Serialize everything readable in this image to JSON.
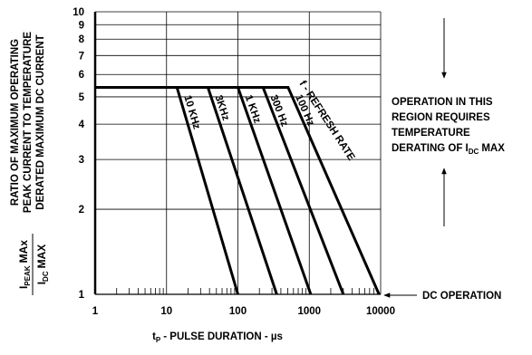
{
  "chart_data": {
    "type": "line",
    "y_label_lines": [
      "RATIO OF MAXIMUM OPERATING",
      "PEAK CURRENT TO TEMPERATURE",
      "DERATED MAXIMUM DC CURRENT"
    ],
    "y_label_fraction": {
      "numerator": [
        "I",
        "PEAK",
        "MAx"
      ],
      "denominator": [
        "I",
        "DC",
        "MAX"
      ]
    },
    "x_label": [
      "t",
      "P",
      "- PULSE DURATION - µs"
    ],
    "xscale": "log",
    "yscale": "log",
    "xlim": [
      1,
      10000
    ],
    "ylim": [
      1,
      10
    ],
    "xticks": [
      1,
      10,
      100,
      1000,
      10000
    ],
    "x_minor_ticks": [
      2,
      3,
      4,
      5,
      6,
      7,
      8,
      9,
      20,
      30,
      40,
      50,
      60,
      70,
      80,
      90,
      200,
      300,
      400,
      500,
      600,
      700,
      800,
      900,
      2000,
      3000,
      4000,
      5000,
      6000,
      7000,
      8000,
      9000
    ],
    "yticks": [
      1,
      2,
      3,
      4,
      5,
      6,
      7,
      8,
      9,
      10
    ],
    "grid": true,
    "series": [
      {
        "name": "10 KHz",
        "color": "#000000",
        "x": [
          1,
          14,
          100
        ],
        "values": [
          5.4,
          5.4,
          1
        ]
      },
      {
        "name": "3KHz",
        "color": "#000000",
        "x": [
          1,
          38,
          350
        ],
        "values": [
          5.4,
          5.4,
          1
        ]
      },
      {
        "name": "1 KHz",
        "color": "#000000",
        "x": [
          1,
          100,
          1050
        ],
        "values": [
          5.4,
          5.4,
          1
        ]
      },
      {
        "name": "300 Hz",
        "color": "#000000",
        "x": [
          1,
          225,
          3000
        ],
        "values": [
          5.4,
          5.4,
          1
        ]
      },
      {
        "name": "100 Hz",
        "color": "#000000",
        "x": [
          1,
          505,
          9500
        ],
        "values": [
          5.4,
          5.4,
          1
        ]
      }
    ],
    "annotations": {
      "rate": "f - REFRESH RATE",
      "region": [
        "OPERATION IN THIS",
        "REGION REQUIRES",
        "TEMPERATURE"
      ],
      "region_last": [
        "DERATING OF I",
        "DC",
        "MAX"
      ],
      "dc": "DC OPERATION"
    }
  }
}
